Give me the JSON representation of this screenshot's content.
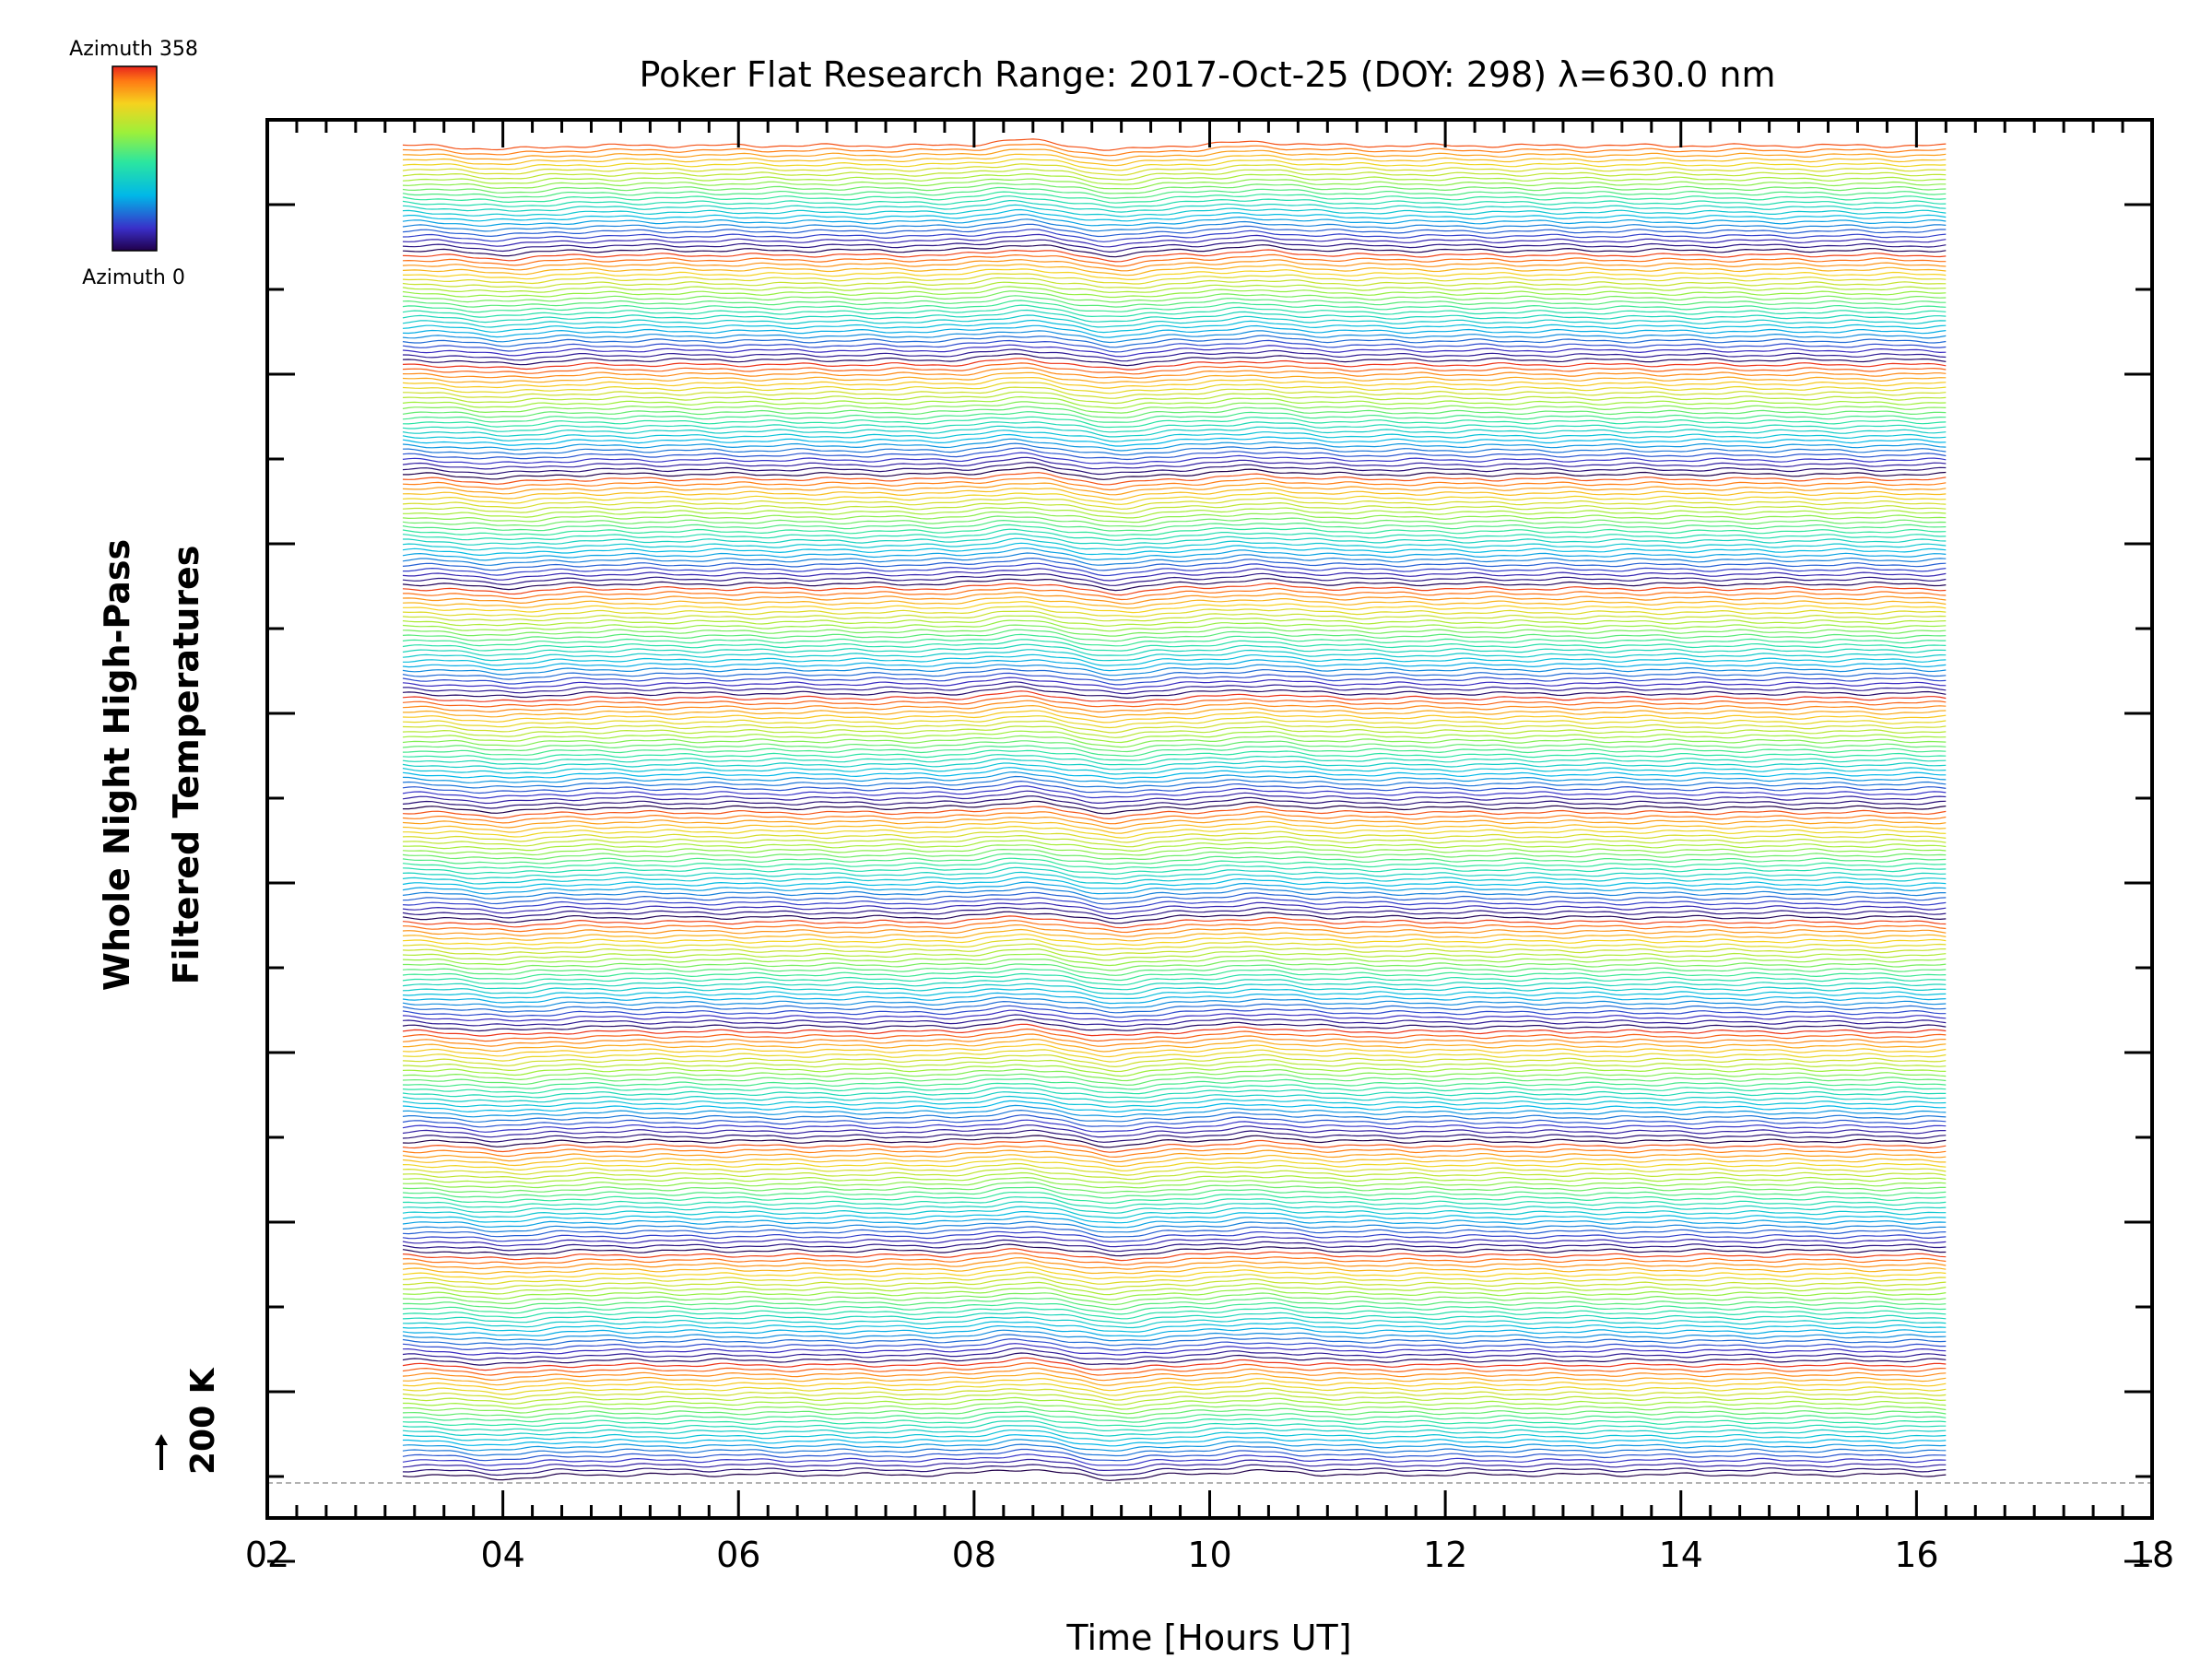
{
  "chart_data": {
    "type": "line",
    "title": "Poker Flat Research Range: 2017-Oct-25 (DOY: 298) λ=630.0 nm",
    "xlabel": "Time [Hours UT]",
    "ylabel_lines": [
      "Whole Night High-Pass",
      "Filtered Temperatures"
    ],
    "xlim": [
      2,
      18
    ],
    "x_tick_labels": [
      "02",
      "04",
      "06",
      "08",
      "10",
      "12",
      "14",
      "16",
      "18"
    ],
    "x_tick_values": [
      2,
      4,
      6,
      8,
      10,
      12,
      14,
      16,
      18
    ],
    "x_data_range_hours": [
      3.15,
      16.25
    ],
    "scale_bar_label": "200 K",
    "colorbar": {
      "top_label": "Azimuth 358",
      "bottom_label": "Azimuth 0",
      "colormap": "rainbow"
    },
    "series_count": 280,
    "azimuth_cycles": 12,
    "grid": false,
    "legend_placement": "top-left"
  }
}
